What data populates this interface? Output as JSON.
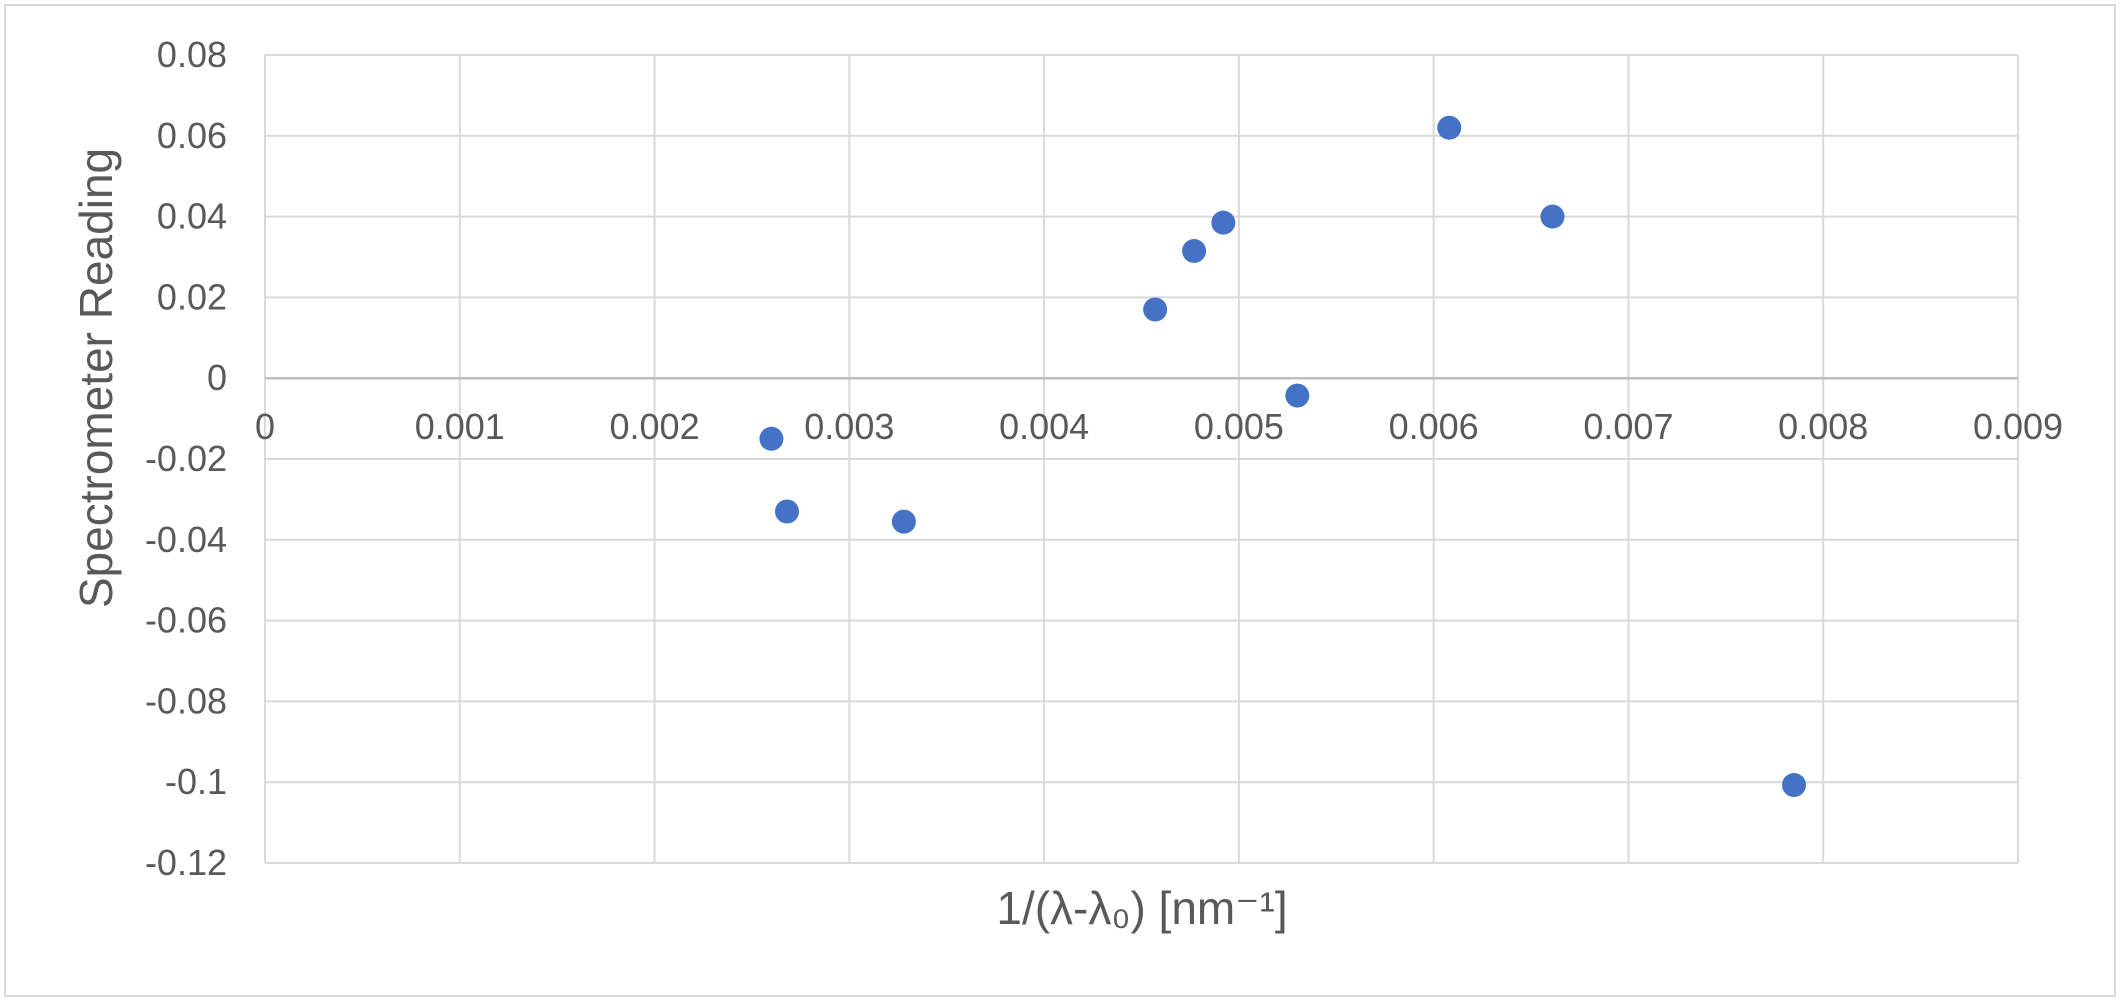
{
  "chart_data": {
    "type": "scatter",
    "title": "",
    "xlabel": "1/(λ-λ₀) [nm⁻¹]",
    "ylabel": "Spectrometer Reading",
    "xlim": [
      0,
      0.009
    ],
    "ylim": [
      -0.12,
      0.08
    ],
    "x_ticks": [
      0,
      0.001,
      0.002,
      0.003,
      0.004,
      0.005,
      0.006,
      0.007,
      0.008,
      0.009
    ],
    "x_tick_labels": [
      "0",
      "0.001",
      "0.002",
      "0.003",
      "0.004",
      "0.005",
      "0.006",
      "0.007",
      "0.008",
      "0.009"
    ],
    "y_ticks": [
      0.08,
      0.06,
      0.04,
      0.02,
      0,
      -0.02,
      -0.04,
      -0.06,
      -0.08,
      -0.1,
      -0.12
    ],
    "y_tick_labels": [
      "0.08",
      "0.06",
      "0.04",
      "0.02",
      "0",
      "-0.02",
      "-0.04",
      "-0.06",
      "-0.08",
      "-0.1",
      "-0.12"
    ],
    "grid": true,
    "marker_color": "#4472c4",
    "gridline_color": "#d9d9d9",
    "axis_line_color": "#bfbfbf",
    "series": [
      {
        "points": [
          {
            "x": 0.0026,
            "y": -0.015
          },
          {
            "x": 0.00268,
            "y": -0.033
          },
          {
            "x": 0.00328,
            "y": -0.0355
          },
          {
            "x": 0.00457,
            "y": 0.017
          },
          {
            "x": 0.00477,
            "y": 0.0315
          },
          {
            "x": 0.00492,
            "y": 0.0385
          },
          {
            "x": 0.0053,
            "y": -0.0043
          },
          {
            "x": 0.00608,
            "y": 0.062
          },
          {
            "x": 0.00661,
            "y": 0.04
          },
          {
            "x": 0.00785,
            "y": -0.1007
          }
        ]
      }
    ]
  }
}
